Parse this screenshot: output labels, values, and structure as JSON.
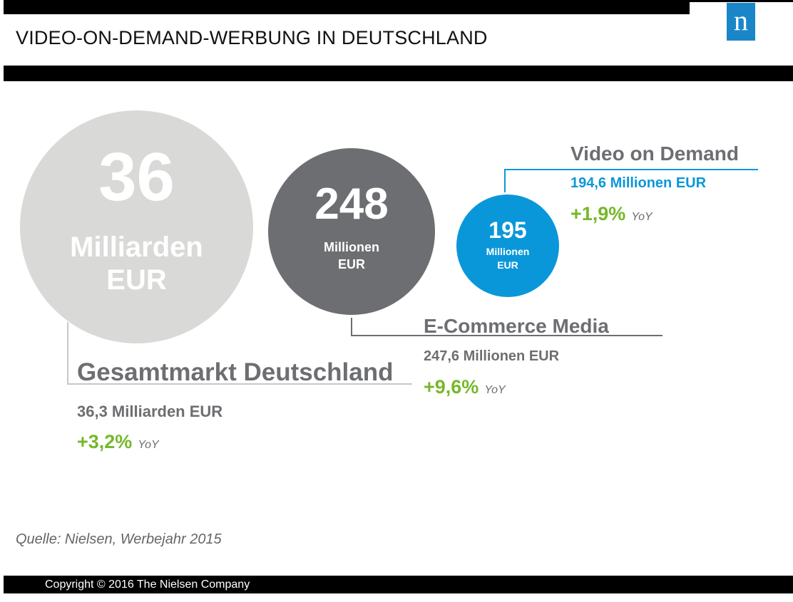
{
  "header": {
    "title": "VIDEO-ON-DEMAND-WERBUNG  IN DEUTSCHLAND",
    "logo_letter": "n"
  },
  "circles": [
    {
      "number": "36",
      "unit_line1": "Milliarden",
      "unit_line2": "EUR",
      "color": "#d9dad7"
    },
    {
      "number": "248",
      "unit_line1": "Millionen",
      "unit_line2": "EUR",
      "color": "#6d6e71"
    },
    {
      "number": "195",
      "unit_line1": "Millionen",
      "unit_line2": "EUR",
      "color": "#0a97d9"
    }
  ],
  "labels": {
    "gesamt": {
      "heading": "Gesamtmarkt Deutschland",
      "value": "36,3 Milliarden EUR",
      "change": "+3,2%",
      "yoy": "YoY"
    },
    "ecommerce": {
      "heading": "E-Commerce Media",
      "value": "247,6 Millionen EUR",
      "change": "+9,6%",
      "yoy": "YoY"
    },
    "vod": {
      "heading": "Video on Demand",
      "value": "194,6 Millionen EUR",
      "change": "+1,9%",
      "yoy": "YoY"
    }
  },
  "colors": {
    "accent_blue": "#0a97d9",
    "growth_green": "#76b82a",
    "dark_gray": "#6d6e71",
    "light_gray": "#d9dad7"
  },
  "footer": {
    "source": "Quelle: Nielsen, Werbejahr 2015",
    "copyright": "Copyright © 2016 The Nielsen Company"
  }
}
